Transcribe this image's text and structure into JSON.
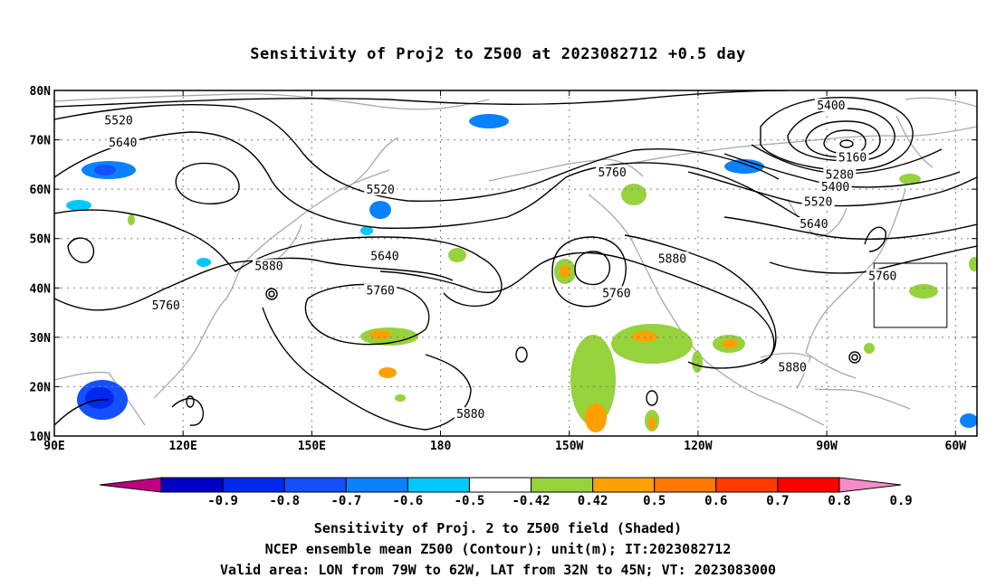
{
  "title": "Sensitivity of Proj2 to Z500 at 2023082712 +0.5 day",
  "map": {
    "lon_range": [
      90,
      305
    ],
    "lat_range": [
      10,
      80
    ],
    "lat_ticks": [
      {
        "value": 80,
        "label": "80N"
      },
      {
        "value": 70,
        "label": "70N"
      },
      {
        "value": 60,
        "label": "60N"
      },
      {
        "value": 50,
        "label": "50N"
      },
      {
        "value": 40,
        "label": "40N"
      },
      {
        "value": 30,
        "label": "30N"
      },
      {
        "value": 20,
        "label": "20N"
      },
      {
        "value": 10,
        "label": "10N"
      }
    ],
    "lon_ticks": [
      {
        "value": 90,
        "label": "90E"
      },
      {
        "value": 120,
        "label": "120E"
      },
      {
        "value": 150,
        "label": "150E"
      },
      {
        "value": 180,
        "label": "180"
      },
      {
        "value": 210,
        "label": "150W"
      },
      {
        "value": 240,
        "label": "120W"
      },
      {
        "value": 270,
        "label": "90W"
      },
      {
        "value": 300,
        "label": "60W"
      }
    ],
    "grid": "dotted",
    "valid_box": {
      "lon": [
        281,
        298
      ],
      "lat": [
        32,
        45
      ]
    },
    "contour_labels": [
      {
        "text": "5520",
        "lon": 105,
        "lat": 73.5
      },
      {
        "text": "5640",
        "lon": 106,
        "lat": 69.0
      },
      {
        "text": "5520",
        "lon": 166,
        "lat": 59.5
      },
      {
        "text": "5400",
        "lon": 271,
        "lat": 76.5
      },
      {
        "text": "5160",
        "lon": 276,
        "lat": 66.0
      },
      {
        "text": "5280",
        "lon": 273,
        "lat": 62.5
      },
      {
        "text": "5400",
        "lon": 272,
        "lat": 60.0
      },
      {
        "text": "5520",
        "lon": 268,
        "lat": 57.0
      },
      {
        "text": "5640",
        "lon": 267,
        "lat": 52.5
      },
      {
        "text": "5760",
        "lon": 220,
        "lat": 63.0
      },
      {
        "text": "5640",
        "lon": 167,
        "lat": 46.0
      },
      {
        "text": "5880",
        "lon": 140,
        "lat": 44.0
      },
      {
        "text": "5760",
        "lon": 166,
        "lat": 39.0
      },
      {
        "text": "5760",
        "lon": 221,
        "lat": 38.5
      },
      {
        "text": "5880",
        "lon": 234,
        "lat": 45.5
      },
      {
        "text": "5760",
        "lon": 116,
        "lat": 36.0
      },
      {
        "text": "5760",
        "lon": 283,
        "lat": 42.0
      },
      {
        "text": "5880",
        "lon": 262,
        "lat": 23.5
      },
      {
        "text": "5880",
        "lon": 187,
        "lat": 14.0
      }
    ]
  },
  "colorbar": {
    "colors": [
      "#c0007f",
      "#0000c8",
      "#0028f0",
      "#1450ff",
      "#0a82ff",
      "#00c8ff",
      "#ffffff",
      "#96d23c",
      "#ffa000",
      "#ff7800",
      "#ff3c00",
      "#ff0000",
      "#f58cc8"
    ],
    "labels": [
      "-0.9",
      "-0.8",
      "-0.7",
      "-0.6",
      "-0.5",
      "-0.42",
      "0.42",
      "0.5",
      "0.6",
      "0.7",
      "0.8",
      "0.9"
    ]
  },
  "captions": {
    "line1": "Sensitivity of Proj. 2 to Z500 field (Shaded)",
    "line2": "NCEP ensemble mean Z500 (Contour); unit(m); IT:2023082712",
    "line3": "Valid area: LON from 79W to 62W, LAT from 32N to 45N; VT: 2023083000"
  },
  "icons": {
    "shading": "sensitivity-patches",
    "coastline": "gray-coastline"
  }
}
